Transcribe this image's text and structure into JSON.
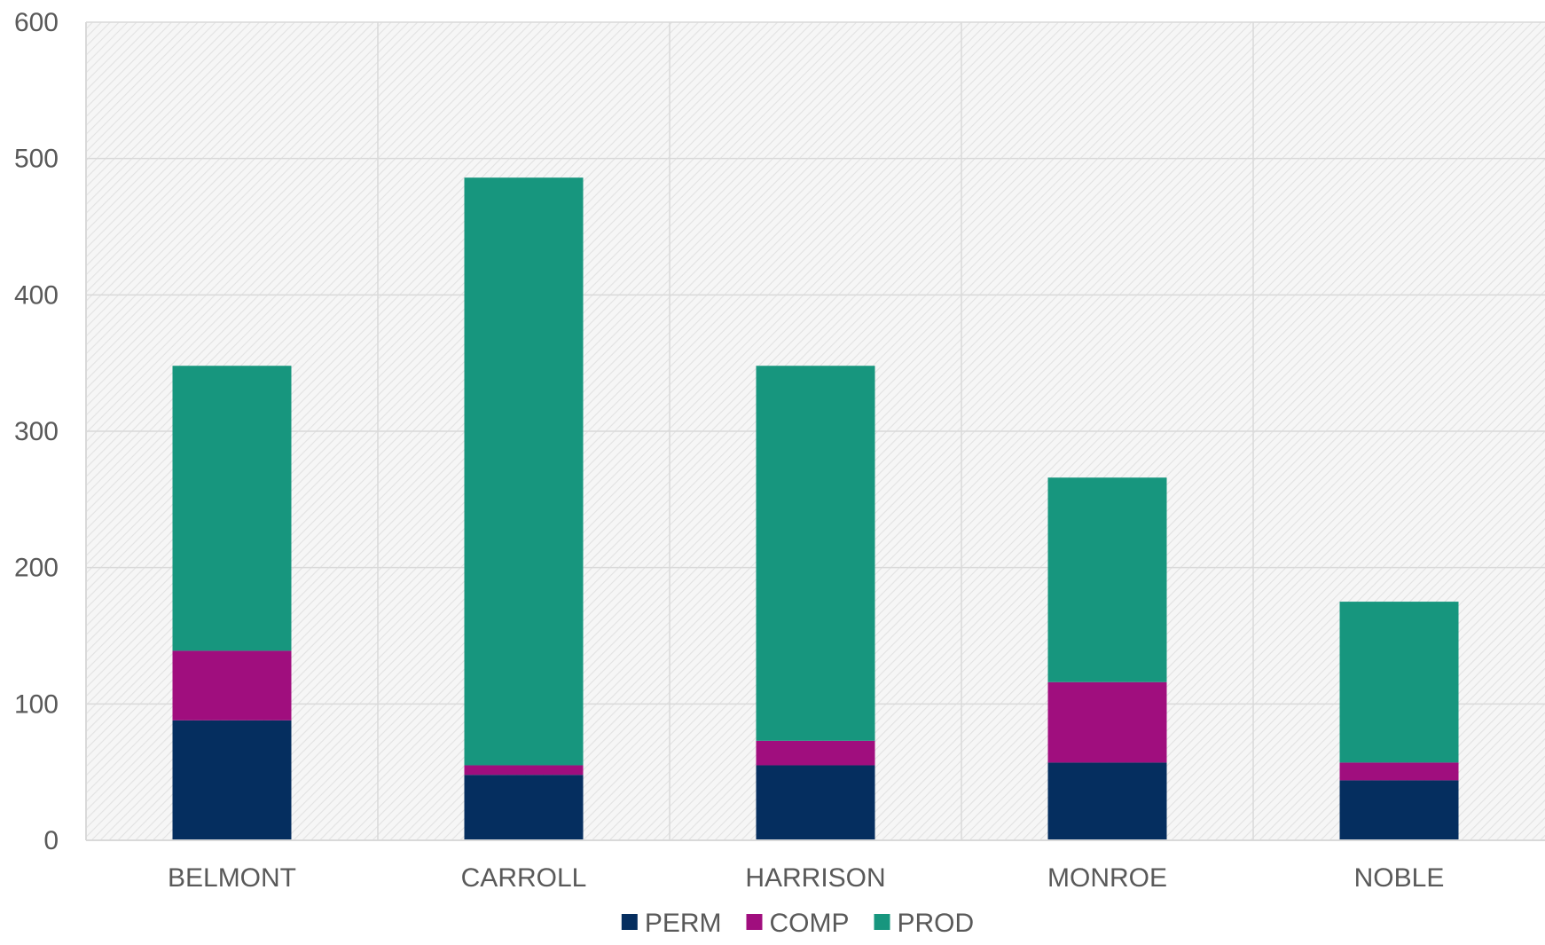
{
  "chart_data": {
    "type": "bar",
    "stacked": true,
    "title": "",
    "xlabel": "",
    "ylabel": "",
    "categories": [
      "BELMONT",
      "CARROLL",
      "HARRISON",
      "MONROE",
      "NOBLE"
    ],
    "series": [
      {
        "name": "PERM",
        "color": "#052e5f",
        "values": [
          88,
          48,
          55,
          57,
          44
        ]
      },
      {
        "name": "COMP",
        "color": "#a00e7e",
        "values": [
          51,
          7,
          18,
          59,
          13
        ]
      },
      {
        "name": "PROD",
        "color": "#17967e",
        "values": [
          209,
          431,
          275,
          150,
          118
        ]
      }
    ],
    "ylim": [
      0,
      600
    ],
    "yticks": [
      0,
      100,
      200,
      300,
      400,
      500,
      600
    ],
    "grid": {
      "horizontal": true,
      "vertical": true
    },
    "plot_background": "hatched light gray",
    "legend": {
      "position": "bottom"
    }
  }
}
